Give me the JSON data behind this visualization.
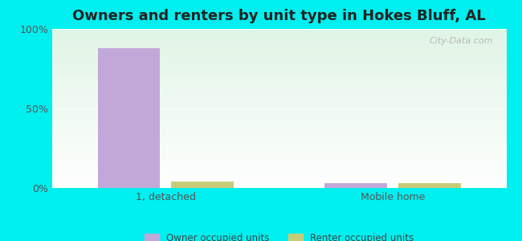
{
  "title": "Owners and renters by unit type in Hokes Bluff, AL",
  "categories": [
    "1, detached",
    "Mobile home"
  ],
  "owner_values": [
    88,
    3
  ],
  "renter_values": [
    4,
    3
  ],
  "owner_color": "#c2a8d8",
  "renter_color": "#c8cc78",
  "background_color": "#00efef",
  "plot_bg_color_topleft": "#d8edd8",
  "plot_bg_color_topright": "#eaf5e8",
  "plot_bg_color_bottom": "#f8fff8",
  "ylabel_ticks": [
    0,
    50,
    100
  ],
  "ylabel_labels": [
    "0%",
    "50%",
    "100%"
  ],
  "title_fontsize": 13,
  "legend_labels": [
    "Owner occupied units",
    "Renter occupied units"
  ],
  "watermark": "City-Data.com",
  "bar_width": 0.55,
  "group_positions": [
    1.0,
    3.0
  ],
  "xlim": [
    0,
    4
  ],
  "ylim": [
    0,
    100
  ]
}
